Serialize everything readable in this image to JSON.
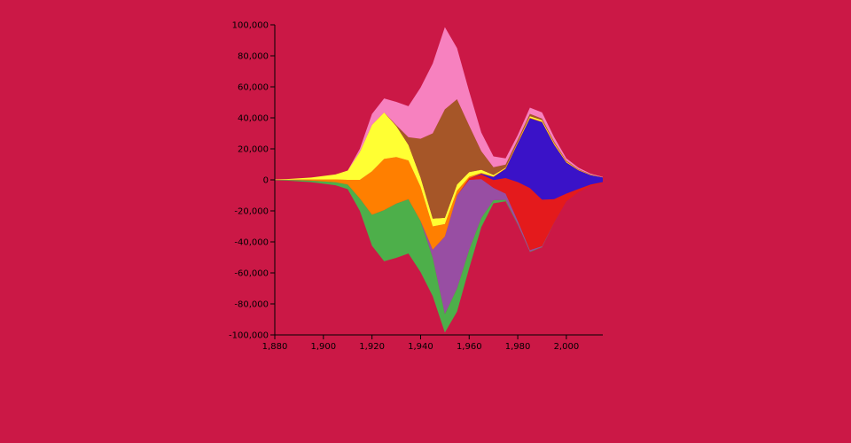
{
  "chart_data": {
    "type": "streamgraph",
    "offset": "silhouette",
    "background": "#cb1846",
    "x": [
      1880,
      1885,
      1890,
      1895,
      1900,
      1905,
      1910,
      1915,
      1920,
      1925,
      1930,
      1935,
      1940,
      1945,
      1950,
      1955,
      1960,
      1965,
      1970,
      1975,
      1980,
      1985,
      1990,
      1995,
      2000,
      2005,
      2010,
      2015
    ],
    "series": [
      {
        "color": "#4daf4a",
        "values": [
          200,
          400,
          800,
          1000,
          1500,
          2000,
          3000,
          8000,
          20000,
          33000,
          35000,
          35000,
          33000,
          25000,
          12000,
          15000,
          12000,
          6000,
          2000,
          1000,
          500,
          300,
          200,
          100,
          0,
          0,
          0,
          0
        ]
      },
      {
        "color": "#984ea3",
        "values": [
          0,
          0,
          0,
          0,
          0,
          0,
          0,
          0,
          0,
          0,
          0,
          0,
          0,
          5000,
          50000,
          60000,
          45000,
          25000,
          8000,
          4000,
          2000,
          1000,
          500,
          0,
          0,
          0,
          0,
          0
        ]
      },
      {
        "color": "#e41a1c",
        "values": [
          0,
          0,
          0,
          0,
          0,
          0,
          0,
          0,
          0,
          0,
          0,
          0,
          0,
          0,
          0,
          0,
          1000,
          3000,
          5000,
          10000,
          25000,
          40000,
          30000,
          15000,
          5000,
          2000,
          1000,
          500
        ]
      },
      {
        "color": "#3a12c8",
        "values": [
          0,
          0,
          0,
          0,
          0,
          0,
          0,
          0,
          0,
          0,
          0,
          0,
          0,
          0,
          0,
          0,
          0,
          500,
          2000,
          6000,
          25000,
          45000,
          50000,
          35000,
          20000,
          12000,
          6000,
          3000
        ]
      },
      {
        "color": "#ff7f00",
        "values": [
          100,
          200,
          400,
          800,
          1200,
          1800,
          3000,
          12000,
          28000,
          33000,
          30000,
          25000,
          22000,
          15000,
          8000,
          3000,
          1000,
          500,
          300,
          200,
          300,
          300,
          300,
          300,
          200,
          100,
          100,
          0
        ]
      },
      {
        "color": "#ffff33",
        "values": [
          200,
          400,
          800,
          1200,
          2300,
          3200,
          6000,
          18000,
          30000,
          30000,
          20000,
          10000,
          6000,
          5000,
          4000,
          4000,
          3000,
          2000,
          1000,
          500,
          500,
          1000,
          1000,
          800,
          500,
          300,
          200,
          100
        ]
      },
      {
        "color": "#a65628",
        "values": [
          0,
          0,
          0,
          0,
          0,
          0,
          0,
          0,
          0,
          0,
          500,
          5000,
          25000,
          55000,
          70000,
          55000,
          30000,
          12000,
          5000,
          2000,
          1500,
          1500,
          1000,
          800,
          500,
          300,
          200,
          100
        ]
      },
      {
        "color": "#f781bf",
        "values": [
          0,
          0,
          0,
          0,
          0,
          0,
          0,
          2000,
          7000,
          9000,
          15000,
          20000,
          33000,
          45000,
          53000,
          33000,
          22000,
          12000,
          7000,
          4000,
          3000,
          4000,
          4000,
          3000,
          1500,
          1000,
          500,
          200
        ]
      }
    ],
    "xlim": [
      1880,
      2015
    ],
    "xticks": [
      {
        "value": 1880,
        "label": "1,880"
      },
      {
        "value": 1900,
        "label": "1,900"
      },
      {
        "value": 1920,
        "label": "1,920"
      },
      {
        "value": 1940,
        "label": "1,940"
      },
      {
        "value": 1960,
        "label": "1,960"
      },
      {
        "value": 1980,
        "label": "1,980"
      },
      {
        "value": 2000,
        "label": "2,000"
      }
    ],
    "ylim": [
      -100000,
      100000
    ],
    "yticks": [
      {
        "value": -100000,
        "label": "-100,000"
      },
      {
        "value": -80000,
        "label": "-80,000"
      },
      {
        "value": -60000,
        "label": "-60,000"
      },
      {
        "value": -40000,
        "label": "-40,000"
      },
      {
        "value": -20000,
        "label": "-20,000"
      },
      0,
      {
        "value": 20000,
        "label": "20,000"
      },
      {
        "value": 40000,
        "label": "40,000"
      },
      {
        "value": 60000,
        "label": "60,000"
      },
      {
        "value": 80000,
        "label": "80,000"
      },
      {
        "value": 100000,
        "label": "100,000"
      }
    ]
  }
}
